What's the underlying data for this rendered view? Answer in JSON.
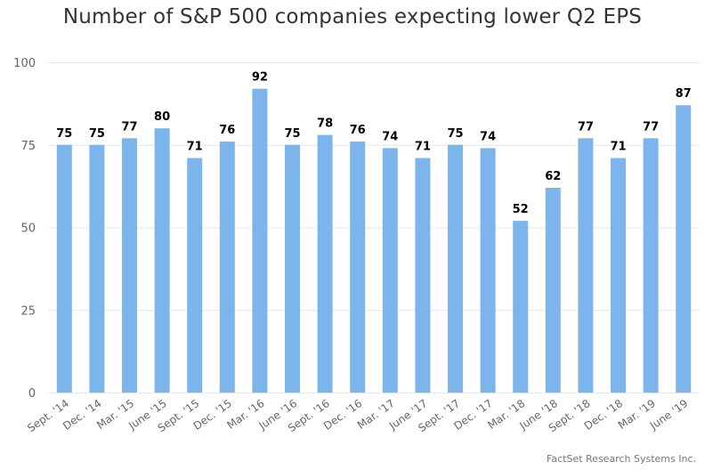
{
  "chart_data": {
    "type": "bar",
    "title": "Number of S&P 500 companies expecting lower Q2 EPS",
    "categories": [
      "Sept. '14",
      "Dec. '14",
      "Mar. '15",
      "June '15",
      "Sept. '15",
      "Dec. '15",
      "Mar. '16",
      "June '16",
      "Sept. '16",
      "Dec. '16",
      "Mar. '17",
      "June '17",
      "Sept. '17",
      "Dec. '17",
      "Mar. '18",
      "June '18",
      "Sept. '18",
      "Dec. '18",
      "Mar. '19",
      "June '19"
    ],
    "values": [
      75,
      75,
      77,
      80,
      71,
      76,
      92,
      75,
      78,
      76,
      74,
      71,
      75,
      74,
      52,
      62,
      77,
      71,
      77,
      87
    ],
    "ylim": [
      0,
      100
    ],
    "yticks": [
      0,
      25,
      50,
      75,
      100
    ],
    "grid": true,
    "bar_color": "#7cb5ec",
    "label_color": "#000000"
  },
  "credit": "FactSet Research Systems Inc."
}
